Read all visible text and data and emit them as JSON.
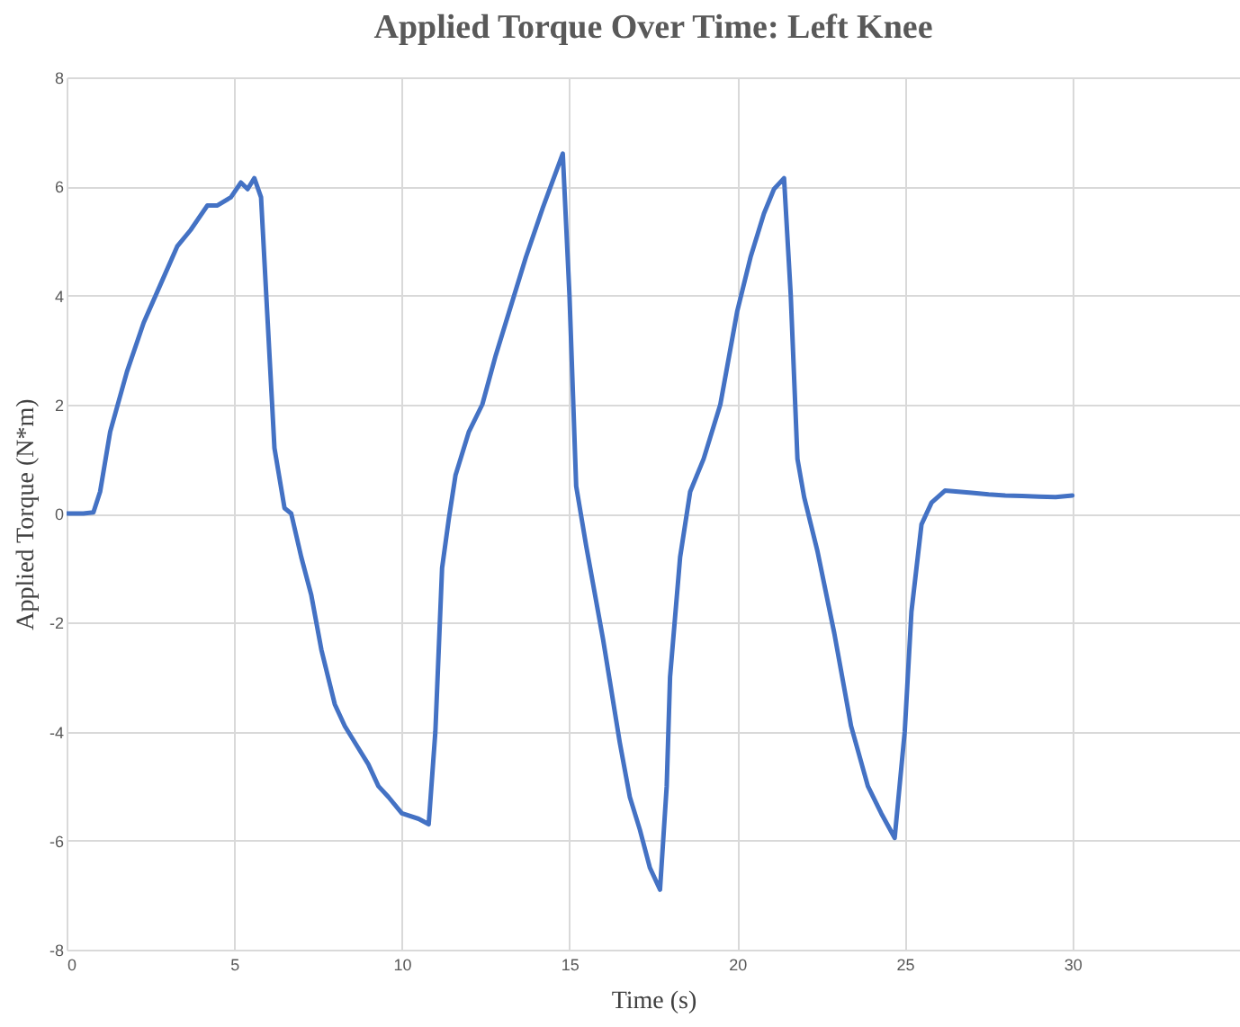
{
  "chart_data": {
    "type": "line",
    "title": "Applied Torque Over Time: Left Knee",
    "xlabel": "Time (s)",
    "ylabel": "Applied Torque (N*m)",
    "xlim": [
      0,
      35
    ],
    "xticks": [
      0,
      5,
      10,
      15,
      20,
      25,
      30
    ],
    "ylim": [
      -8,
      8
    ],
    "yticks": [
      -8,
      -6,
      -4,
      -2,
      0,
      2,
      4,
      6,
      8
    ],
    "grid": true,
    "x": [
      0,
      0.5,
      0.8,
      1.0,
      1.3,
      1.8,
      2.3,
      2.8,
      3.3,
      3.7,
      4.2,
      4.5,
      4.9,
      5.2,
      5.4,
      5.6,
      5.8,
      6.0,
      6.2,
      6.5,
      6.7,
      7.0,
      7.3,
      7.6,
      8.0,
      8.3,
      8.7,
      9.0,
      9.3,
      9.6,
      10.0,
      10.5,
      10.8,
      11.0,
      11.2,
      11.4,
      11.6,
      12.0,
      12.4,
      12.8,
      13.3,
      13.7,
      14.2,
      14.5,
      14.8,
      15.0,
      15.2,
      15.5,
      16.0,
      16.5,
      16.8,
      17.1,
      17.4,
      17.7,
      17.9,
      18.0,
      18.3,
      18.6,
      19.0,
      19.5,
      20.0,
      20.4,
      20.8,
      21.1,
      21.4,
      21.6,
      21.8,
      22.0,
      22.4,
      22.9,
      23.4,
      23.9,
      24.3,
      24.7,
      25.0,
      25.2,
      25.5,
      25.8,
      26.2,
      26.6,
      27.0,
      27.5,
      28.0,
      28.5,
      29.0,
      29.5,
      30.0
    ],
    "series": [
      {
        "color": "#4472c4",
        "values": [
          0,
          0,
          0.02,
          0.4,
          1.5,
          2.6,
          3.5,
          4.2,
          4.9,
          5.2,
          5.65,
          5.65,
          5.8,
          6.07,
          5.95,
          6.15,
          5.8,
          3.5,
          1.2,
          0.1,
          0,
          -0.8,
          -1.5,
          -2.5,
          -3.5,
          -3.9,
          -4.3,
          -4.6,
          -5.0,
          -5.2,
          -5.5,
          -5.6,
          -5.7,
          -4.0,
          -1.0,
          -0.1,
          0.7,
          1.5,
          2.0,
          2.9,
          3.9,
          4.7,
          5.6,
          6.1,
          6.6,
          4.0,
          0.5,
          -0.6,
          -2.3,
          -4.2,
          -5.2,
          -5.8,
          -6.5,
          -6.9,
          -5.0,
          -3.0,
          -0.8,
          0.4,
          1.0,
          2.0,
          3.7,
          4.7,
          5.5,
          5.95,
          6.15,
          4.0,
          1.0,
          0.3,
          -0.7,
          -2.2,
          -3.9,
          -5.0,
          -5.5,
          -5.95,
          -4.0,
          -1.8,
          -0.2,
          0.2,
          0.42,
          0.4,
          0.38,
          0.35,
          0.33,
          0.32,
          0.31,
          0.3,
          0.33
        ]
      }
    ]
  }
}
